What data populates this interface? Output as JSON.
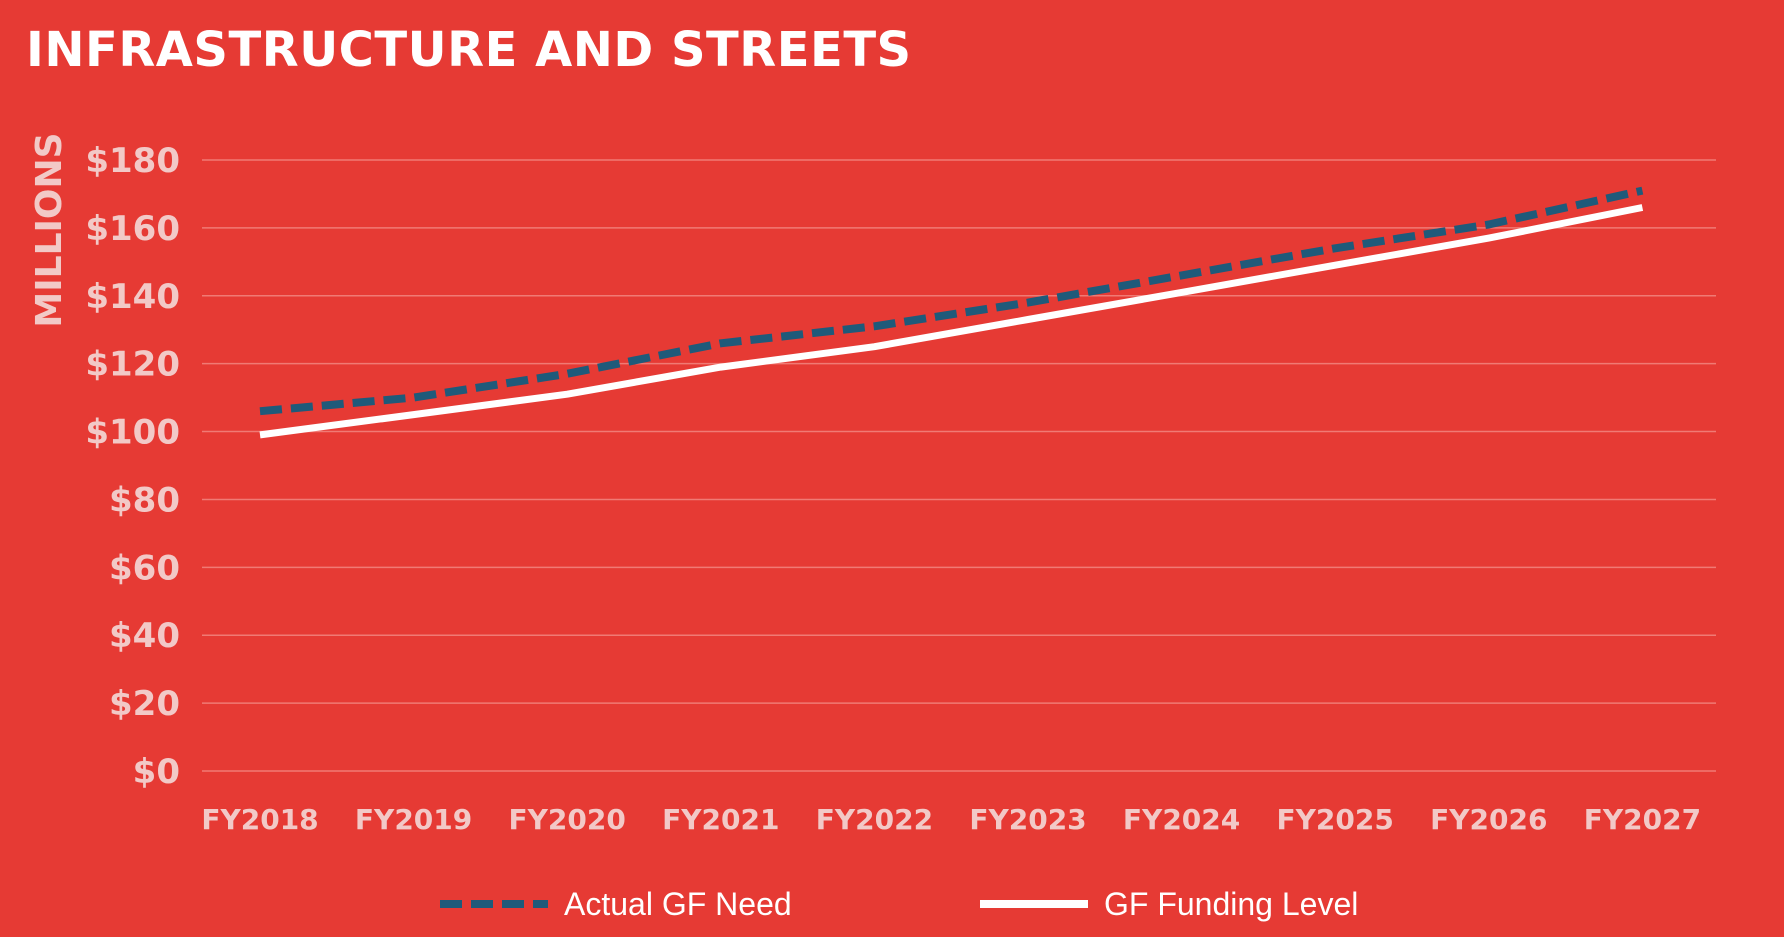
{
  "page": {
    "title": "INFRASTRUCTURE AND STREETS"
  },
  "colors": {
    "background": "#E63A34",
    "grid": "#F07A74",
    "tick_text": "#F2C9C7",
    "need_line": "#1F5A7A",
    "funding_line": "#FFFFFF"
  },
  "chart_data": {
    "type": "line",
    "title": "INFRASTRUCTURE AND STREETS",
    "xlabel": "",
    "ylabel": "MILLIONS",
    "ylim": [
      0,
      180
    ],
    "yticks": [
      0,
      20,
      40,
      60,
      80,
      100,
      120,
      140,
      160,
      180
    ],
    "ytick_labels": [
      "$0",
      "$20",
      "$40",
      "$60",
      "$80",
      "$100",
      "$120",
      "$140",
      "$160",
      "$180"
    ],
    "categories": [
      "FY2018",
      "FY2019",
      "FY2020",
      "FY2021",
      "FY2022",
      "FY2023",
      "FY2024",
      "FY2025",
      "FY2026",
      "FY2027"
    ],
    "grid": true,
    "legend_position": "bottom",
    "series": [
      {
        "name": "Actual GF Need",
        "style": "dashed",
        "color": "#1F5A7A",
        "values": [
          106,
          110,
          117,
          126,
          131,
          138,
          146,
          154,
          161,
          171
        ]
      },
      {
        "name": "GF Funding Level",
        "style": "solid",
        "color": "#FFFFFF",
        "values": [
          99,
          105,
          111,
          119,
          125,
          133,
          141,
          149,
          157,
          166
        ]
      }
    ]
  }
}
